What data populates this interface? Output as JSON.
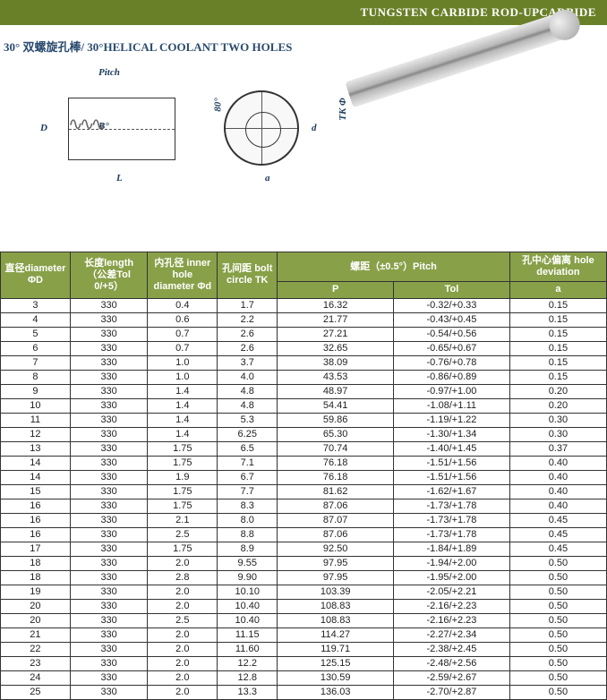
{
  "header": {
    "title": "TUNGSTEN CARBIDE ROD-UPCARBIDE"
  },
  "subtitle": "30° 双螺旋孔棒/ 30°HELICAL COOLANT TWO HOLES",
  "diagram": {
    "labels": {
      "pitch": "Pitch",
      "D": "D",
      "B": "B°",
      "L": "L",
      "eighty": "80°",
      "d": "d",
      "tk": "TK Φ",
      "a": "a"
    }
  },
  "table": {
    "headers": {
      "diameter": "直径diameter\nΦD",
      "length": "长度length\n（公差Tol 0/+5）",
      "inner_hole": "内孔径\ninner hole\ndiameter\nΦd",
      "bolt_circle": "孔间距\nbolt\ncircle TK",
      "pitch_group": "螺距（±0.5°）Pitch",
      "pitch_p": "P",
      "pitch_tol": "Tol",
      "hole_dev": "孔中心偏离\nhole deviation",
      "hole_dev_a": "a"
    },
    "rows": [
      {
        "d": "3",
        "l": "330",
        "id": "0.4",
        "tk": "1.7",
        "p": "16.32",
        "tol": "-0.32/+0.33",
        "a": "0.15"
      },
      {
        "d": "4",
        "l": "330",
        "id": "0.6",
        "tk": "2.2",
        "p": "21.77",
        "tol": "-0.43/+0.45",
        "a": "0.15"
      },
      {
        "d": "5",
        "l": "330",
        "id": "0.7",
        "tk": "2.6",
        "p": "27.21",
        "tol": "-0.54/+0.56",
        "a": "0.15"
      },
      {
        "d": "6",
        "l": "330",
        "id": "0.7",
        "tk": "2.6",
        "p": "32.65",
        "tol": "-0.65/+0.67",
        "a": "0.15"
      },
      {
        "d": "7",
        "l": "330",
        "id": "1.0",
        "tk": "3.7",
        "p": "38.09",
        "tol": "-0.76/+0.78",
        "a": "0.15"
      },
      {
        "d": "8",
        "l": "330",
        "id": "1.0",
        "tk": "4.0",
        "p": "43.53",
        "tol": "-0.86/+0.89",
        "a": "0.15"
      },
      {
        "d": "9",
        "l": "330",
        "id": "1.4",
        "tk": "4.8",
        "p": "48.97",
        "tol": "-0.97/+1.00",
        "a": "0.20"
      },
      {
        "d": "10",
        "l": "330",
        "id": "1.4",
        "tk": "4.8",
        "p": "54.41",
        "tol": "-1.08/+1.11",
        "a": "0.20"
      },
      {
        "d": "11",
        "l": "330",
        "id": "1.4",
        "tk": "5.3",
        "p": "59.86",
        "tol": "-1.19/+1.22",
        "a": "0.30"
      },
      {
        "d": "12",
        "l": "330",
        "id": "1.4",
        "tk": "6.25",
        "p": "65.30",
        "tol": "-1.30/+1.34",
        "a": "0.30"
      },
      {
        "d": "13",
        "l": "330",
        "id": "1.75",
        "tk": "6.5",
        "p": "70.74",
        "tol": "-1.40/+1.45",
        "a": "0.37"
      },
      {
        "d": "14",
        "l": "330",
        "id": "1.75",
        "tk": "7.1",
        "p": "76.18",
        "tol": "-1.51/+1.56",
        "a": "0.40"
      },
      {
        "d": "14",
        "l": "330",
        "id": "1.9",
        "tk": "6.7",
        "p": "76.18",
        "tol": "-1.51/+1.56",
        "a": "0.40"
      },
      {
        "d": "15",
        "l": "330",
        "id": "1.75",
        "tk": "7.7",
        "p": "81.62",
        "tol": "-1.62/+1.67",
        "a": "0.40"
      },
      {
        "d": "16",
        "l": "330",
        "id": "1.75",
        "tk": "8.3",
        "p": "87.06",
        "tol": "-1.73/+1.78",
        "a": "0.40"
      },
      {
        "d": "16",
        "l": "330",
        "id": "2.1",
        "tk": "8.0",
        "p": "87.07",
        "tol": "-1.73/+1.78",
        "a": "0.45"
      },
      {
        "d": "16",
        "l": "330",
        "id": "2.5",
        "tk": "8.8",
        "p": "87.06",
        "tol": "-1.73/+1.78",
        "a": "0.45"
      },
      {
        "d": "17",
        "l": "330",
        "id": "1.75",
        "tk": "8.9",
        "p": "92.50",
        "tol": "-1.84/+1.89",
        "a": "0.45"
      },
      {
        "d": "18",
        "l": "330",
        "id": "2.0",
        "tk": "9.55",
        "p": "97.95",
        "tol": "-1.94/+2.00",
        "a": "0.50"
      },
      {
        "d": "18",
        "l": "330",
        "id": "2.8",
        "tk": "9.90",
        "p": "97.95",
        "tol": "-1.95/+2.00",
        "a": "0.50"
      },
      {
        "d": "19",
        "l": "330",
        "id": "2.0",
        "tk": "10.10",
        "p": "103.39",
        "tol": "-2.05/+2.21",
        "a": "0.50"
      },
      {
        "d": "20",
        "l": "330",
        "id": "2.0",
        "tk": "10.40",
        "p": "108.83",
        "tol": "-2.16/+2.23",
        "a": "0.50"
      },
      {
        "d": "20",
        "l": "330",
        "id": "2.5",
        "tk": "10.40",
        "p": "108.83",
        "tol": "-2.16/+2.23",
        "a": "0.50"
      },
      {
        "d": "21",
        "l": "330",
        "id": "2.0",
        "tk": "11.15",
        "p": "114.27",
        "tol": "-2.27/+2.34",
        "a": "0.50"
      },
      {
        "d": "22",
        "l": "330",
        "id": "2.0",
        "tk": "11.60",
        "p": "119.71",
        "tol": "-2.38/+2.45",
        "a": "0.50"
      },
      {
        "d": "23",
        "l": "330",
        "id": "2.0",
        "tk": "12.2",
        "p": "125.15",
        "tol": "-2.48/+2.56",
        "a": "0.50"
      },
      {
        "d": "24",
        "l": "330",
        "id": "2.0",
        "tk": "12.8",
        "p": "130.59",
        "tol": "-2.59/+2.67",
        "a": "0.50"
      },
      {
        "d": "25",
        "l": "330",
        "id": "2.0",
        "tk": "13.3",
        "p": "136.03",
        "tol": "-2.70/+2.87",
        "a": "0.50"
      }
    ]
  }
}
